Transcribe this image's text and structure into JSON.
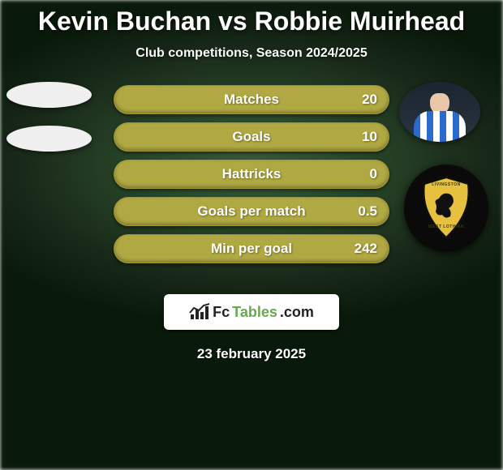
{
  "title": {
    "text": "Kevin Buchan vs Robbie Muirhead",
    "color": "#ffffff",
    "fontsize": 32
  },
  "subtitle": {
    "text": "Club competitions, Season 2024/2025",
    "color": "#ffffff",
    "fontsize": 16
  },
  "bars": {
    "bg_color": "#b0a842",
    "border_color": "#a09838",
    "label_color": "#ffffff",
    "value_color": "#ffffff",
    "label_fontsize": 17,
    "value_fontsize": 17,
    "rows": [
      {
        "label": "Matches",
        "right_value": "20"
      },
      {
        "label": "Goals",
        "right_value": "10"
      },
      {
        "label": "Hattricks",
        "right_value": "0"
      },
      {
        "label": "Goals per match",
        "right_value": "0.5"
      },
      {
        "label": "Min per goal",
        "right_value": "242"
      }
    ]
  },
  "left_player": {
    "oval_color": "#f0f0f0"
  },
  "right_player": {
    "stripe_color_a": "#2a6acc",
    "stripe_color_b": "#ffffff",
    "skin": "#e8c8a8"
  },
  "club_badge": {
    "circle_bg": "#0a0a0a",
    "shield_fill": "#e8c040",
    "shield_stroke": "#101010",
    "ribbon_top_text": "LIVINGSTON",
    "ribbon_bottom_text": "WEST LOTHIAN",
    "ribbon_text_color": "#3a3a0a",
    "lion_color": "#101010"
  },
  "fctables": {
    "bg_color": "#ffffff",
    "icon_color": "#222222",
    "text_fc": "Fc",
    "text_fc_color": "#222222",
    "text_tables": "Tables",
    "text_tables_color": "#6aa84f",
    "text_com": ".com",
    "text_com_color": "#222222",
    "fontsize": 18
  },
  "date": {
    "text": "23 february 2025",
    "color": "#ffffff",
    "fontsize": 17
  },
  "background": {
    "base_color": "#0a1a0a",
    "highlight_color": "#3a5a3a"
  }
}
